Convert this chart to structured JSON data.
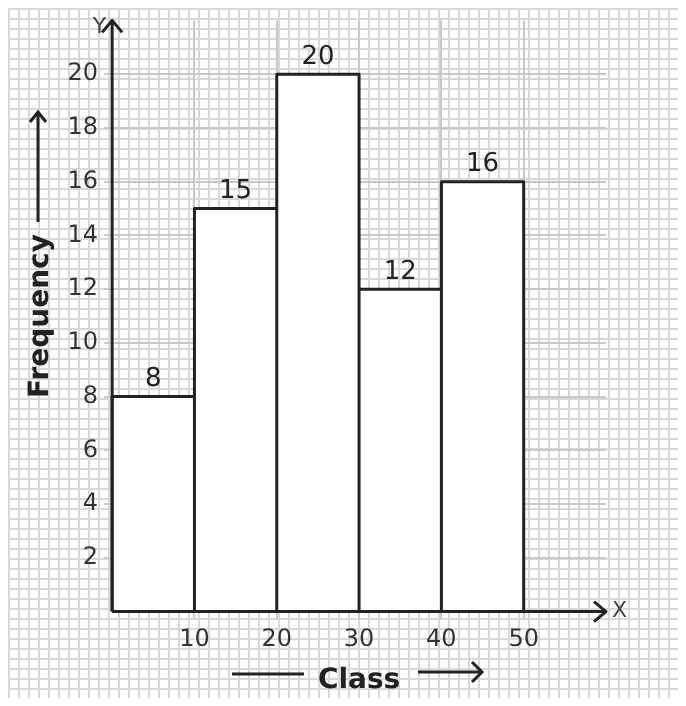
{
  "chart_data": {
    "type": "histogram",
    "xlabel": "Class",
    "ylabel": "Frequency",
    "bins": [
      0,
      10,
      20,
      30,
      40,
      50
    ],
    "values": [
      8,
      15,
      20,
      12,
      16
    ],
    "color": "#ffffff",
    "xlim": [
      0,
      60
    ],
    "ylim": [
      0,
      22
    ],
    "xticks": [
      10,
      20,
      30,
      40,
      50
    ],
    "yticks": [
      2,
      4,
      6,
      8,
      10,
      12,
      14,
      16,
      18,
      20
    ],
    "grid": true,
    "data_labels": true,
    "annotations": [
      "Y",
      "X"
    ]
  }
}
